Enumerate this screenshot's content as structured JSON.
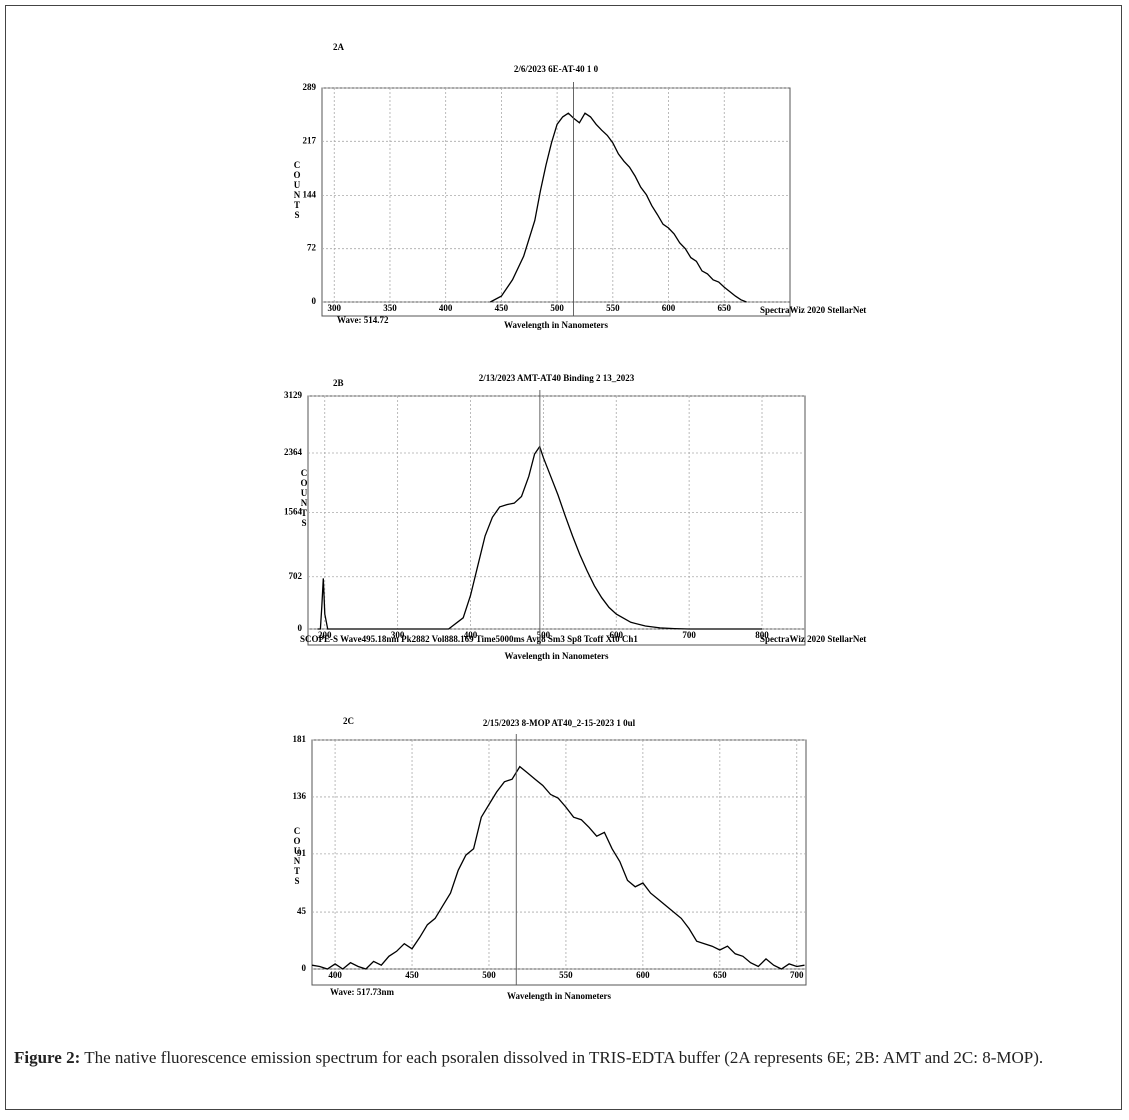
{
  "chart_data": [
    {
      "type": "line",
      "panel_label": "2A",
      "title": "2/6/2023 6E-AT-40 1 0",
      "y_label": "COUNTS",
      "x_label": "Wavelength in Nanometers",
      "footnote": "Wave: 514.72",
      "stamp": "SpectraWiz 2020 StellarNet",
      "cursor": 514.72,
      "grid": true,
      "xlim": [
        289,
        709
      ],
      "ylim": [
        0,
        289
      ],
      "xticks": [
        300,
        350,
        400,
        450,
        500,
        550,
        600,
        650
      ],
      "yticks": [
        0,
        72,
        144,
        217,
        289
      ],
      "x": [
        440,
        450,
        460,
        470,
        480,
        485,
        490,
        495,
        500,
        505,
        510,
        515,
        520,
        525,
        530,
        535,
        540,
        545,
        550,
        555,
        560,
        565,
        570,
        575,
        580,
        585,
        590,
        595,
        600,
        605,
        610,
        615,
        620,
        625,
        630,
        635,
        640,
        645,
        650,
        655,
        660,
        665,
        670
      ],
      "series": [
        {
          "color": "#000000",
          "values": [
            0,
            8,
            30,
            62,
            110,
            150,
            185,
            215,
            240,
            250,
            255,
            248,
            242,
            255,
            250,
            240,
            232,
            225,
            215,
            200,
            190,
            182,
            170,
            155,
            145,
            130,
            118,
            105,
            100,
            92,
            80,
            72,
            60,
            55,
            42,
            38,
            30,
            27,
            20,
            14,
            8,
            3,
            0
          ]
        }
      ]
    },
    {
      "type": "line",
      "panel_label": "2B",
      "title": "2/13/2023 AMT-AT40 Binding 2 13_2023",
      "y_label": "COUNTS",
      "x_label": "Wavelength in Nanometers",
      "footnote": "SCOPE-S Wave495.18nm Pk2882 Vol888.169 Time5000ms Avg8 Sm3 Sp8 Tcoff Xt0 Ch1",
      "stamp": "SpectraWiz 2020 StellarNet",
      "cursor": 495.18,
      "grid": true,
      "xlim": [
        177,
        859
      ],
      "ylim": [
        0,
        3129
      ],
      "xticks": [
        200,
        300,
        400,
        500,
        600,
        700,
        800
      ],
      "yticks": [
        0,
        702,
        1564,
        2364,
        3129
      ],
      "x": [
        190,
        194,
        196,
        198,
        200,
        204,
        210,
        300,
        370,
        390,
        400,
        410,
        420,
        430,
        440,
        450,
        460,
        470,
        480,
        488,
        495,
        500,
        510,
        520,
        530,
        540,
        550,
        560,
        570,
        580,
        590,
        600,
        620,
        640,
        660,
        680,
        700,
        800
      ],
      "series": [
        {
          "color": "#000000",
          "values": [
            0,
            0,
            300,
            680,
            200,
            0,
            0,
            0,
            0,
            150,
            450,
            850,
            1250,
            1500,
            1640,
            1670,
            1690,
            1780,
            2050,
            2350,
            2450,
            2300,
            2050,
            1800,
            1520,
            1250,
            1000,
            780,
            580,
            420,
            290,
            200,
            90,
            40,
            15,
            5,
            0,
            0
          ]
        }
      ]
    },
    {
      "type": "line",
      "panel_label": "2C",
      "title": "2/15/2023 8-MOP AT40_2-15-2023 1 0ul",
      "y_label": "COUNTS",
      "x_label": "Wavelength in Nanometers",
      "footnote": "Wave: 517.73nm",
      "cursor": 517.73,
      "grid": true,
      "xlim": [
        385,
        706
      ],
      "ylim": [
        0,
        181
      ],
      "xticks": [
        400,
        450,
        500,
        550,
        600,
        650,
        700
      ],
      "yticks": [
        0,
        45,
        91,
        136,
        181
      ],
      "x": [
        385,
        390,
        395,
        400,
        405,
        410,
        415,
        420,
        425,
        430,
        435,
        440,
        445,
        450,
        455,
        460,
        465,
        470,
        475,
        480,
        485,
        490,
        495,
        500,
        505,
        510,
        515,
        520,
        525,
        530,
        535,
        540,
        545,
        550,
        555,
        560,
        565,
        570,
        575,
        580,
        585,
        590,
        595,
        600,
        605,
        610,
        615,
        620,
        625,
        630,
        635,
        640,
        645,
        650,
        655,
        660,
        665,
        670,
        675,
        680,
        685,
        690,
        695,
        700,
        705
      ],
      "series": [
        {
          "color": "#000000",
          "values": [
            3,
            2,
            0,
            4,
            0,
            5,
            2,
            0,
            6,
            3,
            10,
            14,
            20,
            16,
            25,
            35,
            40,
            50,
            60,
            78,
            90,
            95,
            120,
            130,
            140,
            148,
            150,
            160,
            155,
            150,
            145,
            138,
            135,
            128,
            120,
            118,
            112,
            105,
            108,
            95,
            85,
            70,
            65,
            68,
            60,
            55,
            50,
            45,
            40,
            32,
            22,
            20,
            18,
            15,
            18,
            12,
            10,
            5,
            2,
            8,
            3,
            0,
            4,
            2,
            3
          ]
        }
      ]
    }
  ],
  "caption": {
    "label": "Figure 2:",
    "text": " The native fluorescence emission spectrum for each psoralen dissolved in TRIS-EDTA buffer (2A represents 6E; 2B: AMT and 2C: 8-MOP)."
  }
}
